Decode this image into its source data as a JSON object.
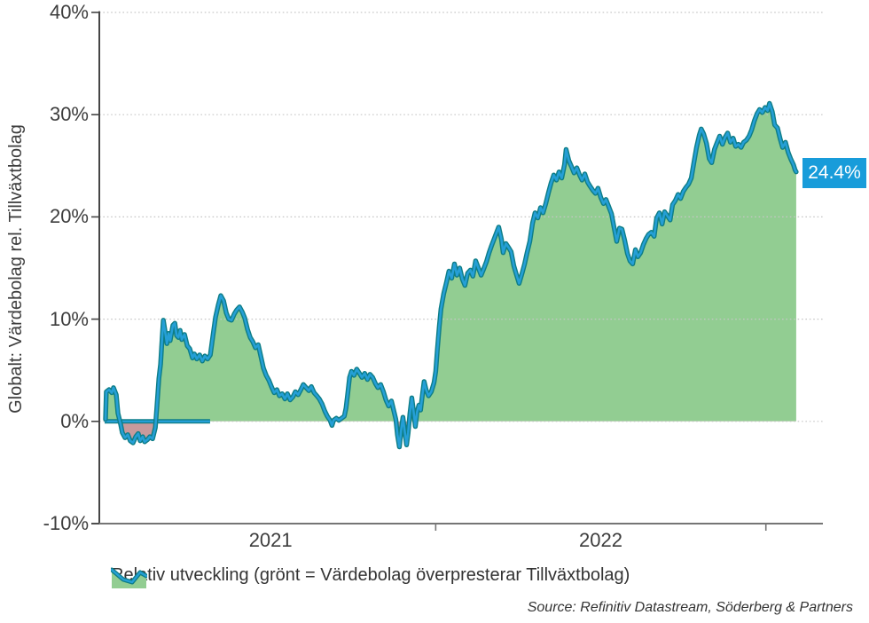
{
  "colors": {
    "line_core": "#259fd6",
    "line_edge": "#0e7d86",
    "area_positive": "#92cd92",
    "area_negative": "#c89a9c",
    "callout_bg": "#189cda",
    "callout_text": "#ffffff",
    "axis_y": "#454545",
    "axis_x": "#757575",
    "gridline": "#c6c6c6",
    "text": "#3d3d3d"
  },
  "chart_data": {
    "type": "area",
    "title": "",
    "xlabel": "",
    "ylabel": "Globalt: Värdebolag rel. Tillväxtbolag",
    "y_unit": "%",
    "ylim": [
      -10,
      40
    ],
    "x_unit": "months, 0 = January 2021",
    "x_range": [
      0,
      25.1
    ],
    "grid": "horizontal dotted gridlines at 0,10,20,30,40",
    "legend_position": "bottom-left",
    "legend_label": "Relativ utveckling (grönt = Värdebolag överpresterar Tillväxtbolag)",
    "source": "Source: Refinitiv Datastream, Söderberg & Partners",
    "last_value": 24.4,
    "last_value_label": "24.4%",
    "y_ticks": [
      {
        "label": "40%",
        "v": 40
      },
      {
        "label": "30%",
        "v": 30
      },
      {
        "label": "20%",
        "v": 20
      },
      {
        "label": "10%",
        "v": 10
      },
      {
        "label": "0%",
        "v": 0
      },
      {
        "label": "-10%",
        "v": -10
      }
    ],
    "x_ticks": [
      {
        "label": "2021",
        "label_m": 6
      },
      {
        "label": "2022",
        "label_m": 18
      }
    ],
    "x_tick_marks_m": [
      12,
      24
    ],
    "zero_baseline_segment_m": [
      0,
      3.8
    ],
    "series": [
      {
        "name": "Relativ utveckling",
        "points": [
          [
            0,
            0.2
          ],
          [
            0.03,
            2.9
          ],
          [
            0.13,
            3.1
          ],
          [
            0.23,
            2.8
          ],
          [
            0.29,
            3.3
          ],
          [
            0.39,
            2.6
          ],
          [
            0.45,
            0.8
          ],
          [
            0.55,
            -0.3
          ],
          [
            0.61,
            -1.1
          ],
          [
            0.71,
            -1.6
          ],
          [
            0.81,
            -1.3
          ],
          [
            0.9,
            -1.9
          ],
          [
            1,
            -2.1
          ],
          [
            1.1,
            -1.5
          ],
          [
            1.19,
            -1.2
          ],
          [
            1.26,
            -1.9
          ],
          [
            1.35,
            -1.5
          ],
          [
            1.42,
            -2
          ],
          [
            1.52,
            -1.8
          ],
          [
            1.61,
            -1.5
          ],
          [
            1.71,
            -1.7
          ],
          [
            1.81,
            -0.6
          ],
          [
            1.87,
            1.5
          ],
          [
            1.94,
            4.2
          ],
          [
            2,
            5.6
          ],
          [
            2.06,
            8.2
          ],
          [
            2.1,
            9.9
          ],
          [
            2.16,
            8.9
          ],
          [
            2.23,
            7.6
          ],
          [
            2.29,
            8.6
          ],
          [
            2.35,
            7.9
          ],
          [
            2.45,
            9.4
          ],
          [
            2.52,
            9.6
          ],
          [
            2.58,
            8.4
          ],
          [
            2.65,
            8.2
          ],
          [
            2.71,
            8.9
          ],
          [
            2.77,
            8
          ],
          [
            2.87,
            8.5
          ],
          [
            2.97,
            7.4
          ],
          [
            3.06,
            7.1
          ],
          [
            3.16,
            6.2
          ],
          [
            3.23,
            6.6
          ],
          [
            3.32,
            6.1
          ],
          [
            3.42,
            6.5
          ],
          [
            3.52,
            5.9
          ],
          [
            3.61,
            6.4
          ],
          [
            3.71,
            6.1
          ],
          [
            3.81,
            6.5
          ],
          [
            3.9,
            8.3
          ],
          [
            4,
            10.2
          ],
          [
            4.1,
            11.4
          ],
          [
            4.19,
            12.3
          ],
          [
            4.29,
            11.8
          ],
          [
            4.39,
            10.6
          ],
          [
            4.48,
            10
          ],
          [
            4.58,
            9.9
          ],
          [
            4.68,
            10.5
          ],
          [
            4.77,
            10.9
          ],
          [
            4.87,
            11.2
          ],
          [
            4.97,
            10.7
          ],
          [
            5.06,
            10.1
          ],
          [
            5.16,
            9
          ],
          [
            5.26,
            8.2
          ],
          [
            5.35,
            7.8
          ],
          [
            5.45,
            7.2
          ],
          [
            5.55,
            7.5
          ],
          [
            5.65,
            6.3
          ],
          [
            5.74,
            5.2
          ],
          [
            5.84,
            4.5
          ],
          [
            5.94,
            4
          ],
          [
            6.03,
            3.4
          ],
          [
            6.13,
            2.8
          ],
          [
            6.23,
            3.1
          ],
          [
            6.32,
            2.5
          ],
          [
            6.42,
            2.7
          ],
          [
            6.52,
            2.2
          ],
          [
            6.61,
            2.7
          ],
          [
            6.71,
            2.1
          ],
          [
            6.81,
            2.4
          ],
          [
            6.9,
            2.9
          ],
          [
            7,
            2.6
          ],
          [
            7.1,
            3.1
          ],
          [
            7.19,
            3.6
          ],
          [
            7.29,
            3.3
          ],
          [
            7.39,
            3
          ],
          [
            7.48,
            3.4
          ],
          [
            7.58,
            2.8
          ],
          [
            7.68,
            2.5
          ],
          [
            7.77,
            2.2
          ],
          [
            7.87,
            1.7
          ],
          [
            7.97,
            1
          ],
          [
            8.06,
            0.5
          ],
          [
            8.16,
            0.1
          ],
          [
            8.23,
            -0.4
          ],
          [
            8.29,
            0.1
          ],
          [
            8.39,
            0.3
          ],
          [
            8.48,
            0.1
          ],
          [
            8.58,
            0.3
          ],
          [
            8.68,
            0.5
          ],
          [
            8.74,
            1.3
          ],
          [
            8.81,
            2.9
          ],
          [
            8.87,
            4.3
          ],
          [
            8.94,
            4.9
          ],
          [
            9.03,
            4.5
          ],
          [
            9.13,
            5.1
          ],
          [
            9.23,
            4.7
          ],
          [
            9.32,
            4.3
          ],
          [
            9.42,
            4.7
          ],
          [
            9.52,
            4.1
          ],
          [
            9.61,
            4.6
          ],
          [
            9.71,
            4.3
          ],
          [
            9.81,
            3.7
          ],
          [
            9.9,
            3.3
          ],
          [
            10,
            3.6
          ],
          [
            10.1,
            2.9
          ],
          [
            10.19,
            2.1
          ],
          [
            10.29,
            1.5
          ],
          [
            10.39,
            2
          ],
          [
            10.48,
            1
          ],
          [
            10.55,
            0.2
          ],
          [
            10.61,
            -1.3
          ],
          [
            10.68,
            -2.5
          ],
          [
            10.74,
            -0.9
          ],
          [
            10.81,
            0.4
          ],
          [
            10.87,
            -0.9
          ],
          [
            10.94,
            -2.3
          ],
          [
            11,
            -1.1
          ],
          [
            11.06,
            0.7
          ],
          [
            11.13,
            2.3
          ],
          [
            11.19,
            1.1
          ],
          [
            11.26,
            -0.5
          ],
          [
            11.32,
            0.9
          ],
          [
            11.39,
            1.6
          ],
          [
            11.45,
            1.1
          ],
          [
            11.52,
            2.7
          ],
          [
            11.58,
            3.9
          ],
          [
            11.65,
            3.1
          ],
          [
            11.74,
            2.5
          ],
          [
            11.84,
            2.9
          ],
          [
            11.94,
            3.8
          ],
          [
            12,
            4.9
          ],
          [
            12.06,
            7
          ],
          [
            12.13,
            9.3
          ],
          [
            12.19,
            11
          ],
          [
            12.29,
            12.5
          ],
          [
            12.39,
            13.6
          ],
          [
            12.48,
            14.7
          ],
          [
            12.58,
            14
          ],
          [
            12.68,
            15.4
          ],
          [
            12.77,
            14.3
          ],
          [
            12.87,
            15
          ],
          [
            12.97,
            13.9
          ],
          [
            13.06,
            13.3
          ],
          [
            13.16,
            14.5
          ],
          [
            13.26,
            14.8
          ],
          [
            13.35,
            14.2
          ],
          [
            13.45,
            15.7
          ],
          [
            13.55,
            15
          ],
          [
            13.65,
            14.3
          ],
          [
            13.74,
            14.9
          ],
          [
            13.84,
            15.6
          ],
          [
            13.94,
            16.5
          ],
          [
            14.03,
            17.2
          ],
          [
            14.13,
            17.9
          ],
          [
            14.23,
            18.6
          ],
          [
            14.29,
            19
          ],
          [
            14.39,
            17.8
          ],
          [
            14.45,
            16.5
          ],
          [
            14.55,
            17.4
          ],
          [
            14.65,
            17
          ],
          [
            14.74,
            16.6
          ],
          [
            14.84,
            15.2
          ],
          [
            14.94,
            14.3
          ],
          [
            15.03,
            13.5
          ],
          [
            15.13,
            14.4
          ],
          [
            15.23,
            15.4
          ],
          [
            15.32,
            16.5
          ],
          [
            15.42,
            17.6
          ],
          [
            15.52,
            19.4
          ],
          [
            15.61,
            20.4
          ],
          [
            15.71,
            19.9
          ],
          [
            15.81,
            20.9
          ],
          [
            15.9,
            20.4
          ],
          [
            16,
            21.3
          ],
          [
            16.1,
            22.4
          ],
          [
            16.19,
            23.3
          ],
          [
            16.29,
            24.1
          ],
          [
            16.39,
            23.6
          ],
          [
            16.48,
            24.4
          ],
          [
            16.58,
            23.8
          ],
          [
            16.68,
            25.1
          ],
          [
            16.74,
            26.6
          ],
          [
            16.84,
            25.5
          ],
          [
            16.94,
            24.9
          ],
          [
            17.03,
            24.3
          ],
          [
            17.13,
            24.8
          ],
          [
            17.23,
            24.1
          ],
          [
            17.32,
            23.6
          ],
          [
            17.42,
            24.2
          ],
          [
            17.52,
            23.4
          ],
          [
            17.61,
            23
          ],
          [
            17.71,
            22.6
          ],
          [
            17.81,
            22.3
          ],
          [
            17.9,
            22.8
          ],
          [
            18,
            21.9
          ],
          [
            18.1,
            21.3
          ],
          [
            18.19,
            21.7
          ],
          [
            18.29,
            21
          ],
          [
            18.39,
            20.3
          ],
          [
            18.48,
            19
          ],
          [
            18.58,
            17.6
          ],
          [
            18.68,
            18.9
          ],
          [
            18.77,
            18.8
          ],
          [
            18.87,
            17.7
          ],
          [
            18.97,
            16.4
          ],
          [
            19.06,
            15.7
          ],
          [
            19.16,
            15.4
          ],
          [
            19.26,
            16.8
          ],
          [
            19.35,
            16.1
          ],
          [
            19.45,
            16.5
          ],
          [
            19.55,
            17.3
          ],
          [
            19.65,
            17.9
          ],
          [
            19.74,
            18.3
          ],
          [
            19.84,
            18.5
          ],
          [
            19.94,
            18.1
          ],
          [
            20.03,
            19.9
          ],
          [
            20.13,
            20.4
          ],
          [
            20.23,
            19.3
          ],
          [
            20.32,
            20.5
          ],
          [
            20.42,
            20.1
          ],
          [
            20.52,
            19.7
          ],
          [
            20.61,
            21.2
          ],
          [
            20.71,
            21.6
          ],
          [
            20.81,
            22.2
          ],
          [
            20.9,
            21.8
          ],
          [
            21,
            22.5
          ],
          [
            21.1,
            22.9
          ],
          [
            21.19,
            23.2
          ],
          [
            21.29,
            23.8
          ],
          [
            21.39,
            25.4
          ],
          [
            21.48,
            26.8
          ],
          [
            21.58,
            28
          ],
          [
            21.65,
            28.6
          ],
          [
            21.74,
            28.1
          ],
          [
            21.84,
            27.2
          ],
          [
            21.94,
            25.7
          ],
          [
            22.03,
            25.3
          ],
          [
            22.13,
            26.6
          ],
          [
            22.23,
            27.3
          ],
          [
            22.32,
            27.9
          ],
          [
            22.42,
            27.1
          ],
          [
            22.52,
            27.8
          ],
          [
            22.61,
            28.2
          ],
          [
            22.71,
            27.3
          ],
          [
            22.81,
            27.7
          ],
          [
            22.9,
            26.9
          ],
          [
            23,
            27.1
          ],
          [
            23.1,
            26.8
          ],
          [
            23.19,
            27.3
          ],
          [
            23.29,
            27.5
          ],
          [
            23.39,
            27.9
          ],
          [
            23.48,
            28.5
          ],
          [
            23.58,
            29.4
          ],
          [
            23.68,
            30.1
          ],
          [
            23.77,
            30.5
          ],
          [
            23.87,
            30.2
          ],
          [
            23.97,
            30.7
          ],
          [
            24.06,
            30.4
          ],
          [
            24.13,
            31.1
          ],
          [
            24.23,
            30.3
          ],
          [
            24.32,
            29
          ],
          [
            24.42,
            28.7
          ],
          [
            24.52,
            27.6
          ],
          [
            24.61,
            26.8
          ],
          [
            24.71,
            27.3
          ],
          [
            24.81,
            26.3
          ],
          [
            24.9,
            25.7
          ],
          [
            25,
            25.1
          ],
          [
            25.06,
            24.6
          ],
          [
            25.1,
            24.4
          ]
        ]
      }
    ]
  }
}
